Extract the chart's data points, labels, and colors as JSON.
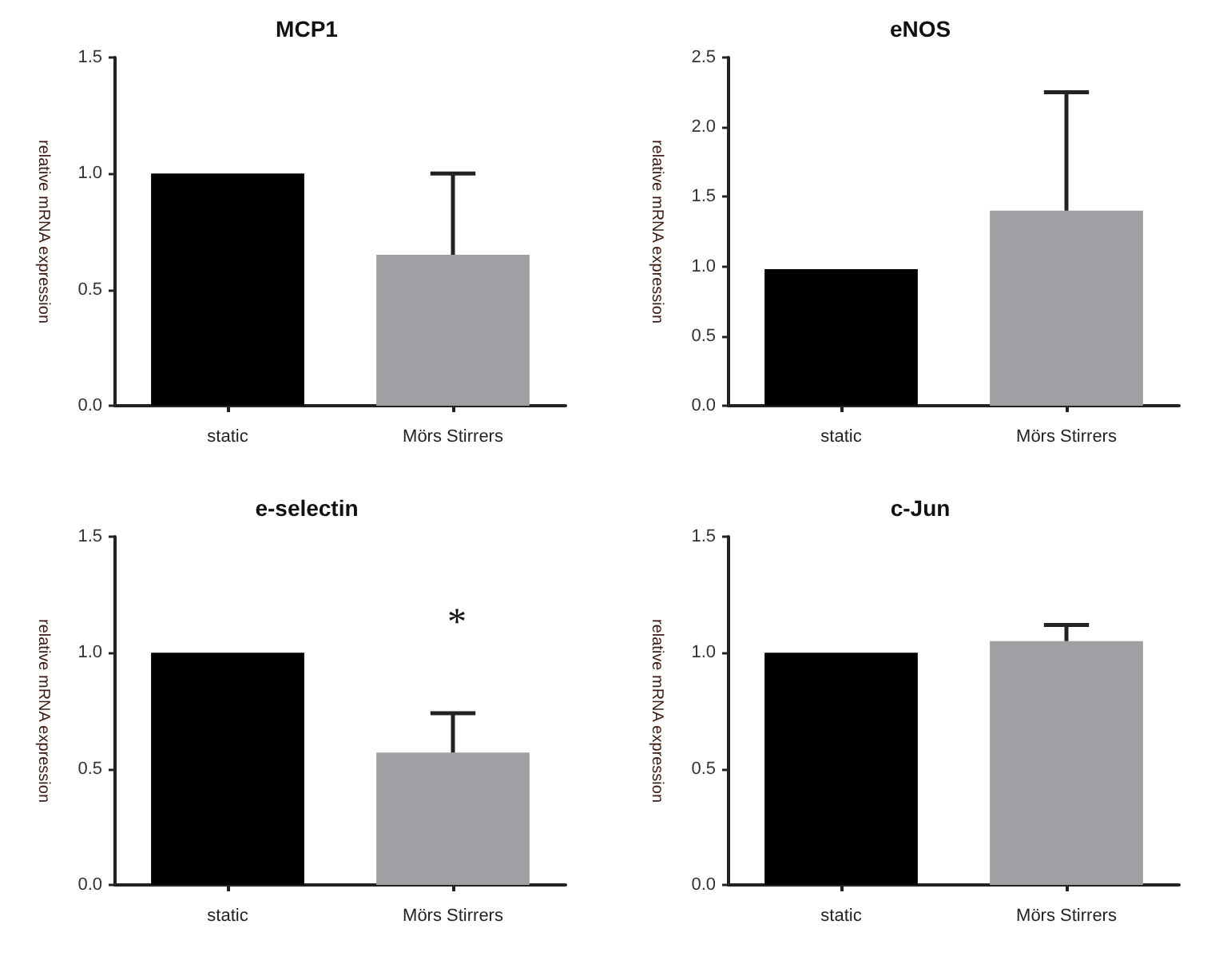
{
  "chart_data": [
    {
      "type": "bar",
      "title": "MCP1",
      "ylabel": "relative mRNA expression",
      "categories": [
        "static",
        "Mörs Stirrers"
      ],
      "values": [
        1.0,
        0.65
      ],
      "colors": [
        "#000000",
        "#a0a0a4"
      ],
      "errors": [
        null,
        [
          0.65,
          1.0
        ]
      ],
      "ylim": [
        0,
        1.5
      ],
      "yticks": [
        {
          "value": 0,
          "label": "0.0"
        },
        {
          "value": 0.5,
          "label": "0.5"
        },
        {
          "value": 1,
          "label": "1.0"
        },
        {
          "value": 1.5,
          "label": "1.5"
        }
      ]
    },
    {
      "type": "bar",
      "title": "eNOS",
      "ylabel": "relative mRNA expression",
      "categories": [
        "static",
        "Mörs Stirrers"
      ],
      "values": [
        0.98,
        1.4
      ],
      "colors": [
        "#000000",
        "#a0a0a4"
      ],
      "errors": [
        null,
        [
          1.4,
          2.25
        ]
      ],
      "ylim": [
        0,
        2.5
      ],
      "yticks": [
        {
          "value": 0,
          "label": "0.0"
        },
        {
          "value": 0.5,
          "label": "0.5"
        },
        {
          "value": 1,
          "label": "1.0"
        },
        {
          "value": 1.5,
          "label": "1.5"
        },
        {
          "value": 2,
          "label": "2.0"
        },
        {
          "value": 2.5,
          "label": "2.5"
        }
      ]
    },
    {
      "type": "bar",
      "title": "e-selectin",
      "ylabel": "relative mRNA expression",
      "categories": [
        "static",
        "Mörs Stirrers"
      ],
      "values": [
        1.0,
        0.57
      ],
      "colors": [
        "#000000",
        "#a0a0a4"
      ],
      "errors": [
        null,
        [
          0.57,
          0.74
        ]
      ],
      "ylim": [
        0,
        1.5
      ],
      "yticks": [
        {
          "value": 0,
          "label": "0.0"
        },
        {
          "value": 0.5,
          "label": "0.5"
        },
        {
          "value": 1,
          "label": "1.0"
        },
        {
          "value": 1.5,
          "label": "1.5"
        }
      ],
      "annotations": [
        "*"
      ]
    },
    {
      "type": "bar",
      "title": "c-Jun",
      "ylabel": "relative mRNA expression",
      "categories": [
        "static",
        "Mörs Stirrers"
      ],
      "values": [
        1.0,
        1.05
      ],
      "colors": [
        "#000000",
        "#a0a0a4"
      ],
      "errors": [
        null,
        [
          1.05,
          1.12
        ]
      ],
      "ylim": [
        0,
        1.5
      ],
      "yticks": [
        {
          "value": 0,
          "label": "0.0"
        },
        {
          "value": 0.5,
          "label": "0.5"
        },
        {
          "value": 1,
          "label": "1.0"
        },
        {
          "value": 1.5,
          "label": "1.5"
        }
      ]
    }
  ]
}
